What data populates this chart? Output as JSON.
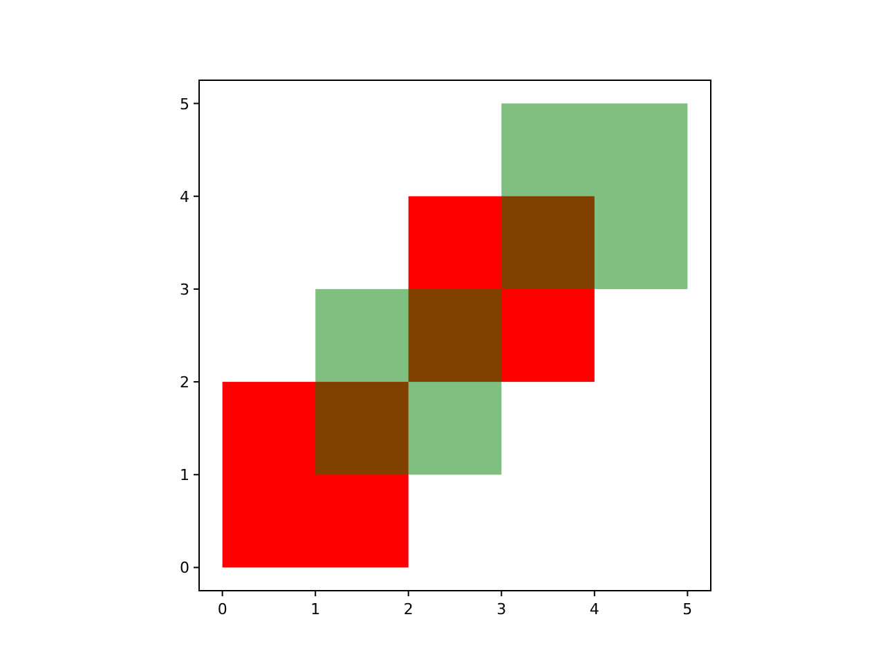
{
  "chart_data": {
    "type": "bar",
    "series": [
      {
        "color": "#ff0000",
        "x": [
          1,
          3
        ],
        "base": [
          0,
          2
        ],
        "values": [
          2,
          2
        ]
      },
      {
        "color": "#008000",
        "x": [
          2,
          4
        ],
        "base": [
          1,
          3
        ],
        "values": [
          2,
          2
        ]
      }
    ],
    "xlim": [
      -0.25,
      5.25
    ],
    "xticks": [
      0,
      1,
      2,
      3,
      4,
      5
    ],
    "ylim": [
      -0.25,
      5.25
    ],
    "yticks": [
      0,
      1,
      2,
      3,
      4,
      5
    ],
    "grid": false
  }
}
